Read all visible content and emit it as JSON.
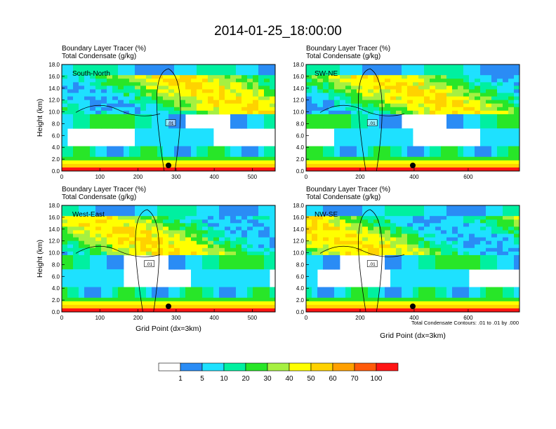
{
  "title": "2014-01-25_18:00:00",
  "field_labels": [
    "Boundary Layer Tracer   (%)",
    "Total Condensate   (g/kg)"
  ],
  "contour_note": "Total Condensate Contours: .01 to .01 by .000",
  "contour_label": ".01",
  "colorbar": {
    "colors": [
      "#ffffff",
      "#2a8cf5",
      "#1ee1ff",
      "#00f0a0",
      "#28e628",
      "#a6f041",
      "#ffff00",
      "#ffd200",
      "#ffa000",
      "#ff5a0a",
      "#ff1414"
    ],
    "labels": [
      "1",
      "5",
      "10",
      "20",
      "30",
      "40",
      "50",
      "60",
      "70",
      "100"
    ]
  },
  "chart_data": [
    {
      "type": "heatmap",
      "panel_label": "South-North",
      "ylabel": "Height (km)",
      "xlabel": "",
      "xlim": [
        0,
        560
      ],
      "ylim": [
        0,
        18
      ],
      "xticks": [
        "0",
        "100",
        "200",
        "300",
        "400",
        "500"
      ],
      "yticks": [
        "0.0",
        "2.0",
        "4.0",
        "6.0",
        "8.0",
        "10.0",
        "12.0",
        "14.0",
        "16.0",
        "18.0"
      ],
      "marker_x": 280
    },
    {
      "type": "heatmap",
      "panel_label": "SW-NE",
      "ylabel": "",
      "xlabel": "",
      "xlim": [
        0,
        790
      ],
      "ylim": [
        0,
        18
      ],
      "xticks": [
        "0",
        "200",
        "400",
        "600"
      ],
      "yticks": [
        "0.0",
        "2.0",
        "4.0",
        "6.0",
        "8.0",
        "10.0",
        "12.0",
        "14.0",
        "16.0",
        "18.0"
      ],
      "marker_x": 395
    },
    {
      "type": "heatmap",
      "panel_label": "West-East",
      "ylabel": "Height (km)",
      "xlabel": "Grid Point (dx=3km)",
      "xlim": [
        0,
        560
      ],
      "ylim": [
        0,
        18
      ],
      "xticks": [
        "0",
        "100",
        "200",
        "300",
        "400",
        "500"
      ],
      "yticks": [
        "0.0",
        "2.0",
        "4.0",
        "6.0",
        "8.0",
        "10.0",
        "12.0",
        "14.0",
        "16.0",
        "18.0"
      ],
      "marker_x": 280
    },
    {
      "type": "heatmap",
      "panel_label": "NW-SE",
      "ylabel": "",
      "xlabel": "Grid Point (dx=3km)",
      "xlim": [
        0,
        790
      ],
      "ylim": [
        0,
        18
      ],
      "xticks": [
        "0",
        "200",
        "400",
        "600"
      ],
      "yticks": [
        "0.0",
        "2.0",
        "4.0",
        "6.0",
        "8.0",
        "10.0",
        "12.0",
        "14.0",
        "16.0",
        "18.0"
      ],
      "marker_x": 395
    }
  ]
}
